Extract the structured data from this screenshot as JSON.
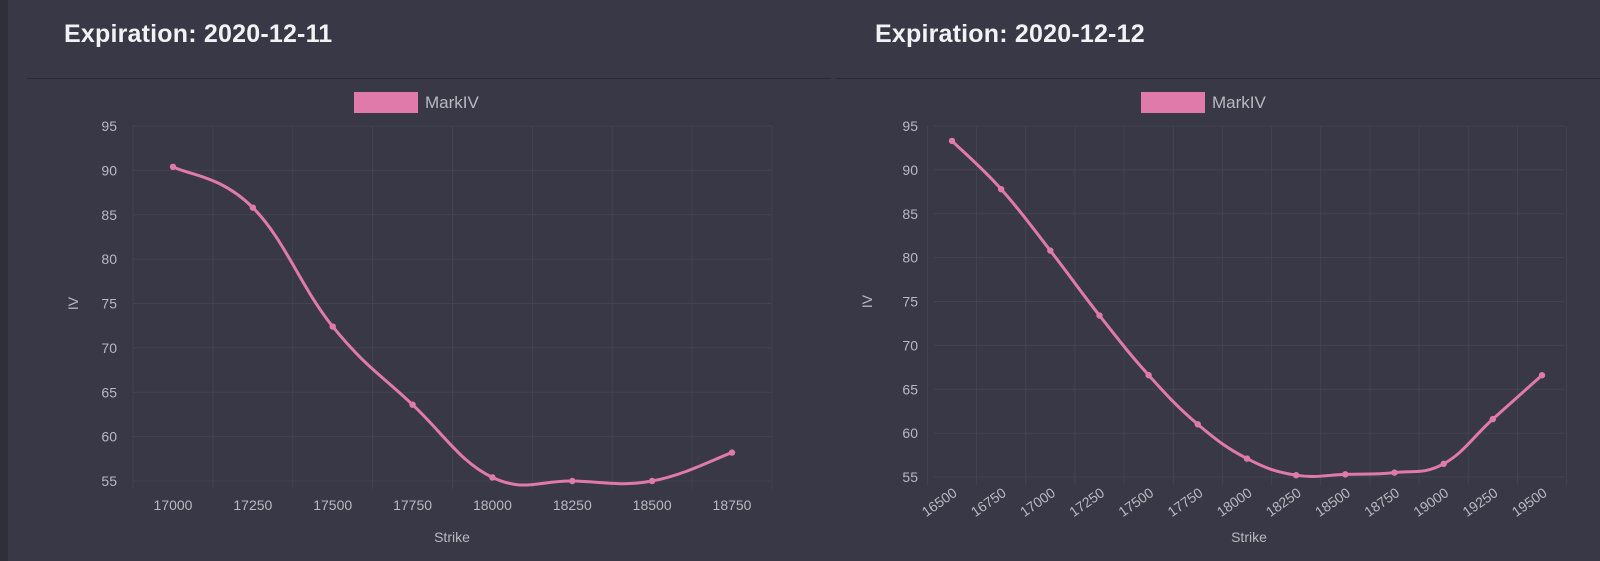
{
  "charts": [
    {
      "title": "Expiration: 2020-12-11"
    },
    {
      "title": "Expiration: 2020-12-12"
    }
  ],
  "colors": {
    "background": "#383846",
    "grid": "#44444f",
    "line": "#e07aab"
  },
  "chart_data": [
    {
      "type": "line",
      "title": "Expiration: 2020-12-11",
      "xlabel": "Strike",
      "ylabel": "IV",
      "ylim": [
        55,
        95
      ],
      "y_ticks": [
        95,
        90,
        85,
        80,
        75,
        70,
        65,
        60,
        55
      ],
      "categories": [
        "17000",
        "17250",
        "17500",
        "17750",
        "18000",
        "18250",
        "18500",
        "18750"
      ],
      "series": [
        {
          "name": "MarkIV",
          "values": [
            90.4,
            85.8,
            72.4,
            63.6,
            55.4,
            55.0,
            55.0,
            58.2
          ]
        }
      ],
      "legend": "top-center",
      "grid": true
    },
    {
      "type": "line",
      "title": "Expiration: 2020-12-12",
      "xlabel": "Strike",
      "ylabel": "IV",
      "ylim": [
        55,
        95
      ],
      "y_ticks": [
        95,
        90,
        85,
        80,
        75,
        70,
        65,
        60,
        55
      ],
      "categories": [
        "16500",
        "16750",
        "17000",
        "17250",
        "17500",
        "17750",
        "18000",
        "18250",
        "18500",
        "18750",
        "19000",
        "19250",
        "19500"
      ],
      "series": [
        {
          "name": "MarkIV",
          "values": [
            93.3,
            87.8,
            80.8,
            73.4,
            66.6,
            61.0,
            57.1,
            55.2,
            55.3,
            55.5,
            56.5,
            61.6,
            66.6
          ]
        }
      ],
      "legend": "top-center",
      "grid": true
    }
  ]
}
